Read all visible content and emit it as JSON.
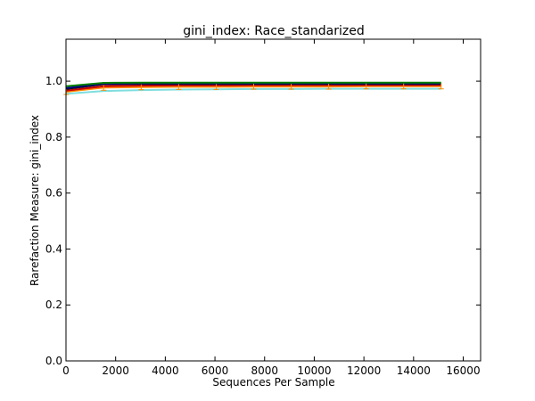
{
  "chart_data": {
    "type": "line",
    "title": "gini_index: Race_standarized",
    "xlabel": "Sequences Per Sample",
    "ylabel": "Rarefaction Measure: gini_index",
    "xlim": [
      0,
      16700
    ],
    "ylim": [
      0,
      1.15
    ],
    "xticks": [
      0,
      2000,
      4000,
      6000,
      8000,
      10000,
      12000,
      14000,
      16000
    ],
    "yticks": [
      0.0,
      0.2,
      0.4,
      0.6,
      0.8,
      1.0
    ],
    "xtick_labels": [
      "0",
      "2000",
      "4000",
      "6000",
      "8000",
      "10000",
      "12000",
      "14000",
      "16000"
    ],
    "ytick_labels": [
      "0.0",
      "0.2",
      "0.4",
      "0.6",
      "0.8",
      "1.0"
    ],
    "grid": false,
    "legend": "none",
    "x": [
      10,
      1520,
      3030,
      4540,
      6050,
      7560,
      9070,
      10580,
      12090,
      13600,
      15110
    ],
    "series": [
      {
        "color": "#008000",
        "values": [
          0.982,
          0.994,
          0.995,
          0.995,
          0.995,
          0.995,
          0.995,
          0.995,
          0.995,
          0.995,
          0.995
        ]
      },
      {
        "color": "#000080",
        "values": [
          0.975,
          0.991,
          0.992,
          0.992,
          0.992,
          0.992,
          0.992,
          0.992,
          0.992,
          0.992,
          0.992
        ]
      },
      {
        "color": "#111111",
        "values": [
          0.972,
          0.989,
          0.99,
          0.99,
          0.99,
          0.99,
          0.99,
          0.99,
          0.99,
          0.99,
          0.99
        ]
      },
      {
        "color": "#cc0000",
        "values": [
          0.966,
          0.982,
          0.984,
          0.985,
          0.985,
          0.986,
          0.986,
          0.986,
          0.986,
          0.986,
          0.986
        ]
      },
      {
        "color": "#ff8c00",
        "values": [
          0.962,
          0.977,
          0.979,
          0.98,
          0.98,
          0.981,
          0.981,
          0.981,
          0.982,
          0.982,
          0.982
        ]
      },
      {
        "color": "#7fdede",
        "values": [
          0.955,
          0.965,
          0.968,
          0.97,
          0.971,
          0.972,
          0.972,
          0.973,
          0.973,
          0.973,
          0.973
        ]
      }
    ],
    "error_bar_color": "#ff8c00"
  }
}
